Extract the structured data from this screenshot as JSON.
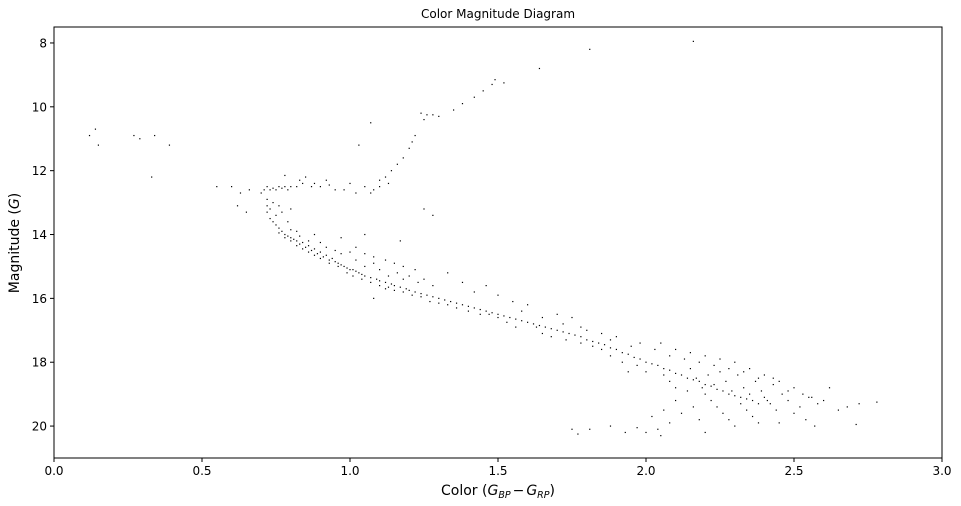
{
  "chart_data": {
    "type": "scatter",
    "title": "Color Magnitude Diagram",
    "xlabel_main": "Color (",
    "xlabel_g1": "G",
    "xlabel_g1_sub": "BP",
    "xlabel_minus": "−",
    "xlabel_g2": "G",
    "xlabel_g2_sub": "RP",
    "xlabel_close": ")",
    "ylabel_main": "Magnitude (",
    "ylabel_g": "G",
    "ylabel_close": ")",
    "xlim": [
      0.0,
      3.0
    ],
    "ylim": [
      21.0,
      7.5
    ],
    "y_inverted": true,
    "grid": false,
    "marker_color": "#000000",
    "x_ticks": [
      {
        "value": 0.0,
        "label": "0.0"
      },
      {
        "value": 0.5,
        "label": "0.5"
      },
      {
        "value": 1.0,
        "label": "1.0"
      },
      {
        "value": 1.5,
        "label": "1.5"
      },
      {
        "value": 2.0,
        "label": "2.0"
      },
      {
        "value": 2.5,
        "label": "2.5"
      },
      {
        "value": 3.0,
        "label": "3.0"
      }
    ],
    "y_ticks": [
      {
        "value": 8,
        "label": "8"
      },
      {
        "value": 10,
        "label": "10"
      },
      {
        "value": 12,
        "label": "12"
      },
      {
        "value": 14,
        "label": "14"
      },
      {
        "value": 16,
        "label": "16"
      },
      {
        "value": 18,
        "label": "18"
      },
      {
        "value": 20,
        "label": "20"
      }
    ],
    "points": [
      [
        0.12,
        10.9
      ],
      [
        0.14,
        10.7
      ],
      [
        0.15,
        11.2
      ],
      [
        0.27,
        10.9
      ],
      [
        0.29,
        11.0
      ],
      [
        0.34,
        10.9
      ],
      [
        0.39,
        11.2
      ],
      [
        0.33,
        12.2
      ],
      [
        0.55,
        12.5
      ],
      [
        0.6,
        12.5
      ],
      [
        0.63,
        12.7
      ],
      [
        0.66,
        12.6
      ],
      [
        0.62,
        13.1
      ],
      [
        0.65,
        13.3
      ],
      [
        0.7,
        12.7
      ],
      [
        0.71,
        12.6
      ],
      [
        0.72,
        12.5
      ],
      [
        0.73,
        12.6
      ],
      [
        0.74,
        12.55
      ],
      [
        0.75,
        12.6
      ],
      [
        0.76,
        12.5
      ],
      [
        0.77,
        12.55
      ],
      [
        0.78,
        12.5
      ],
      [
        0.79,
        12.6
      ],
      [
        0.8,
        12.5
      ],
      [
        0.82,
        12.5
      ],
      [
        0.84,
        12.4
      ],
      [
        0.87,
        12.5
      ],
      [
        0.9,
        12.5
      ],
      [
        0.93,
        12.45
      ],
      [
        0.95,
        12.6
      ],
      [
        0.72,
        12.9
      ],
      [
        0.72,
        13.1
      ],
      [
        0.72,
        13.3
      ],
      [
        0.73,
        13.5
      ],
      [
        0.73,
        13.2
      ],
      [
        0.74,
        13.6
      ],
      [
        0.74,
        13.0
      ],
      [
        0.75,
        13.7
      ],
      [
        0.75,
        13.4
      ],
      [
        0.76,
        13.8
      ],
      [
        0.76,
        13.1
      ],
      [
        0.77,
        13.9
      ],
      [
        0.77,
        13.3
      ],
      [
        0.78,
        14.0
      ],
      [
        0.79,
        13.6
      ],
      [
        0.79,
        14.05
      ],
      [
        0.8,
        14.1
      ],
      [
        0.8,
        13.2
      ],
      [
        0.81,
        14.15
      ],
      [
        0.82,
        14.2
      ],
      [
        0.82,
        13.9
      ],
      [
        0.83,
        14.3
      ],
      [
        0.84,
        14.25
      ],
      [
        0.85,
        14.4
      ],
      [
        0.86,
        14.35
      ],
      [
        0.87,
        14.5
      ],
      [
        0.88,
        14.45
      ],
      [
        0.89,
        14.6
      ],
      [
        0.9,
        14.55
      ],
      [
        0.91,
        14.7
      ],
      [
        0.92,
        14.65
      ],
      [
        0.93,
        14.8
      ],
      [
        0.94,
        14.75
      ],
      [
        0.95,
        14.85
      ],
      [
        0.96,
        14.9
      ],
      [
        0.97,
        14.95
      ],
      [
        0.98,
        15.0
      ],
      [
        0.99,
        15.05
      ],
      [
        1.0,
        15.1
      ],
      [
        1.01,
        15.1
      ],
      [
        1.02,
        15.15
      ],
      [
        1.03,
        15.2
      ],
      [
        1.04,
        15.25
      ],
      [
        1.05,
        15.3
      ],
      [
        1.07,
        15.35
      ],
      [
        1.09,
        15.4
      ],
      [
        1.1,
        15.45
      ],
      [
        1.12,
        15.5
      ],
      [
        1.14,
        15.55
      ],
      [
        1.15,
        15.6
      ],
      [
        1.17,
        15.65
      ],
      [
        1.19,
        15.7
      ],
      [
        1.2,
        15.75
      ],
      [
        1.22,
        15.8
      ],
      [
        1.24,
        15.85
      ],
      [
        1.26,
        15.9
      ],
      [
        1.28,
        15.95
      ],
      [
        1.3,
        16.0
      ],
      [
        1.32,
        16.05
      ],
      [
        1.34,
        16.1
      ],
      [
        1.36,
        16.15
      ],
      [
        1.38,
        16.2
      ],
      [
        1.4,
        16.25
      ],
      [
        1.42,
        16.3
      ],
      [
        1.44,
        16.35
      ],
      [
        1.46,
        16.4
      ],
      [
        1.48,
        16.45
      ],
      [
        1.5,
        16.5
      ],
      [
        1.52,
        16.55
      ],
      [
        1.54,
        16.6
      ],
      [
        1.56,
        16.65
      ],
      [
        1.58,
        16.7
      ],
      [
        1.6,
        16.75
      ],
      [
        1.62,
        16.8
      ],
      [
        1.64,
        16.85
      ],
      [
        1.66,
        16.9
      ],
      [
        1.68,
        16.95
      ],
      [
        1.7,
        17.0
      ],
      [
        1.72,
        17.05
      ],
      [
        1.74,
        17.1
      ],
      [
        1.76,
        17.15
      ],
      [
        1.78,
        17.2
      ],
      [
        1.8,
        17.3
      ],
      [
        1.82,
        17.35
      ],
      [
        1.84,
        17.4
      ],
      [
        1.86,
        17.45
      ],
      [
        1.88,
        17.55
      ],
      [
        1.9,
        17.6
      ],
      [
        1.92,
        17.7
      ],
      [
        1.94,
        17.75
      ],
      [
        1.96,
        17.85
      ],
      [
        1.98,
        17.9
      ],
      [
        2.0,
        18.0
      ],
      [
        2.02,
        18.05
      ],
      [
        2.04,
        18.1
      ],
      [
        2.06,
        18.2
      ],
      [
        2.08,
        18.25
      ],
      [
        2.1,
        18.35
      ],
      [
        2.12,
        18.4
      ],
      [
        2.14,
        18.5
      ],
      [
        2.16,
        18.55
      ],
      [
        2.18,
        18.6
      ],
      [
        2.2,
        18.7
      ],
      [
        2.22,
        18.75
      ],
      [
        2.24,
        18.85
      ],
      [
        2.26,
        18.9
      ],
      [
        2.28,
        19.0
      ],
      [
        2.3,
        19.05
      ],
      [
        2.32,
        19.1
      ],
      [
        2.34,
        19.15
      ],
      [
        2.36,
        19.2
      ],
      [
        2.38,
        19.3
      ],
      [
        0.8,
        13.85
      ],
      [
        0.83,
        14.05
      ],
      [
        0.86,
        14.2
      ],
      [
        0.88,
        14.0
      ],
      [
        0.9,
        14.25
      ],
      [
        0.92,
        14.4
      ],
      [
        0.95,
        14.5
      ],
      [
        0.97,
        14.6
      ],
      [
        1.0,
        14.55
      ],
      [
        1.02,
        14.8
      ],
      [
        1.05,
        15.0
      ],
      [
        1.08,
        14.9
      ],
      [
        1.1,
        15.1
      ],
      [
        1.13,
        15.3
      ],
      [
        1.16,
        15.2
      ],
      [
        1.18,
        15.4
      ],
      [
        1.2,
        15.3
      ],
      [
        1.23,
        15.5
      ],
      [
        1.25,
        15.4
      ],
      [
        1.28,
        15.6
      ],
      [
        0.97,
        14.1
      ],
      [
        1.02,
        14.4
      ],
      [
        1.05,
        14.6
      ],
      [
        1.08,
        14.7
      ],
      [
        1.12,
        14.8
      ],
      [
        1.15,
        14.9
      ],
      [
        1.18,
        15.0
      ],
      [
        1.22,
        15.1
      ],
      [
        0.78,
        12.15
      ],
      [
        0.83,
        12.3
      ],
      [
        0.85,
        12.2
      ],
      [
        0.88,
        12.4
      ],
      [
        0.92,
        12.3
      ],
      [
        0.98,
        12.6
      ],
      [
        1.0,
        12.4
      ],
      [
        1.02,
        12.7
      ],
      [
        1.05,
        12.5
      ],
      [
        1.07,
        12.7
      ],
      [
        1.08,
        12.6
      ],
      [
        1.1,
        12.5
      ],
      [
        1.1,
        12.3
      ],
      [
        1.12,
        12.2
      ],
      [
        1.13,
        12.4
      ],
      [
        1.14,
        12.0
      ],
      [
        1.16,
        11.8
      ],
      [
        1.18,
        11.6
      ],
      [
        1.2,
        11.3
      ],
      [
        1.21,
        11.1
      ],
      [
        1.22,
        10.9
      ],
      [
        1.25,
        10.4
      ],
      [
        1.24,
        10.2
      ],
      [
        1.26,
        10.25
      ],
      [
        1.28,
        10.25
      ],
      [
        1.3,
        10.3
      ],
      [
        1.35,
        10.1
      ],
      [
        1.38,
        9.9
      ],
      [
        1.42,
        9.7
      ],
      [
        1.45,
        9.5
      ],
      [
        1.48,
        9.3
      ],
      [
        1.49,
        9.15
      ],
      [
        1.52,
        9.25
      ],
      [
        1.64,
        8.8
      ],
      [
        1.81,
        8.2
      ],
      [
        2.16,
        7.95
      ],
      [
        1.07,
        10.5
      ],
      [
        1.03,
        11.2
      ],
      [
        1.25,
        13.2
      ],
      [
        1.28,
        13.4
      ],
      [
        1.05,
        14.0
      ],
      [
        1.17,
        14.2
      ],
      [
        1.12,
        15.7
      ],
      [
        1.08,
        16.0
      ],
      [
        1.33,
        15.2
      ],
      [
        1.38,
        15.5
      ],
      [
        1.42,
        15.8
      ],
      [
        1.46,
        15.6
      ],
      [
        1.5,
        15.9
      ],
      [
        1.55,
        16.1
      ],
      [
        1.58,
        16.4
      ],
      [
        1.6,
        16.2
      ],
      [
        1.65,
        16.6
      ],
      [
        1.7,
        16.5
      ],
      [
        1.72,
        16.8
      ],
      [
        1.75,
        16.6
      ],
      [
        1.78,
        16.9
      ],
      [
        1.8,
        17.0
      ],
      [
        1.85,
        17.1
      ],
      [
        1.88,
        17.3
      ],
      [
        1.9,
        17.2
      ],
      [
        1.95,
        17.5
      ],
      [
        1.98,
        17.4
      ],
      [
        2.03,
        17.6
      ],
      [
        2.05,
        17.4
      ],
      [
        2.08,
        17.8
      ],
      [
        2.1,
        17.6
      ],
      [
        2.13,
        17.9
      ],
      [
        2.15,
        17.7
      ],
      [
        2.18,
        18.0
      ],
      [
        2.2,
        17.8
      ],
      [
        2.23,
        18.1
      ],
      [
        2.25,
        17.9
      ],
      [
        2.28,
        18.2
      ],
      [
        2.3,
        18.0
      ],
      [
        2.33,
        18.3
      ],
      [
        2.35,
        18.2
      ],
      [
        2.38,
        18.5
      ],
      [
        2.4,
        18.4
      ],
      [
        2.43,
        18.7
      ],
      [
        2.45,
        18.6
      ],
      [
        2.48,
        18.9
      ],
      [
        2.5,
        18.8
      ],
      [
        2.53,
        19.0
      ],
      [
        2.55,
        19.1
      ],
      [
        2.58,
        19.3
      ],
      [
        2.6,
        19.2
      ],
      [
        2.62,
        18.8
      ],
      [
        2.65,
        19.5
      ],
      [
        2.68,
        19.4
      ],
      [
        2.71,
        19.95
      ],
      [
        2.72,
        19.3
      ],
      [
        2.78,
        19.25
      ],
      [
        2.57,
        20.0
      ],
      [
        2.2,
        19.0
      ],
      [
        2.22,
        19.2
      ],
      [
        2.24,
        19.4
      ],
      [
        2.26,
        19.6
      ],
      [
        2.28,
        19.8
      ],
      [
        2.3,
        20.0
      ],
      [
        2.32,
        19.3
      ],
      [
        2.34,
        19.5
      ],
      [
        2.36,
        19.7
      ],
      [
        2.38,
        19.9
      ],
      [
        2.4,
        19.1
      ],
      [
        2.42,
        19.3
      ],
      [
        2.44,
        19.5
      ],
      [
        2.46,
        19.0
      ],
      [
        2.48,
        19.2
      ],
      [
        2.5,
        19.6
      ],
      [
        2.52,
        19.4
      ],
      [
        2.54,
        19.8
      ],
      [
        2.56,
        19.1
      ],
      [
        2.45,
        19.9
      ],
      [
        2.1,
        19.2
      ],
      [
        2.12,
        19.6
      ],
      [
        2.14,
        18.9
      ],
      [
        2.16,
        19.4
      ],
      [
        2.18,
        19.8
      ],
      [
        2.2,
        20.2
      ],
      [
        2.06,
        19.5
      ],
      [
        2.08,
        19.9
      ],
      [
        2.04,
        20.1
      ],
      [
        2.02,
        19.7
      ],
      [
        1.75,
        20.1
      ],
      [
        1.77,
        20.25
      ],
      [
        1.81,
        20.1
      ],
      [
        1.88,
        20.0
      ],
      [
        1.93,
        20.2
      ],
      [
        1.97,
        20.05
      ],
      [
        2.0,
        20.2
      ],
      [
        2.05,
        20.3
      ],
      [
        2.25,
        18.3
      ],
      [
        2.27,
        18.6
      ],
      [
        2.29,
        18.9
      ],
      [
        2.31,
        18.4
      ],
      [
        2.33,
        18.8
      ],
      [
        2.35,
        19.0
      ],
      [
        2.37,
        18.6
      ],
      [
        2.39,
        18.9
      ],
      [
        2.41,
        19.2
      ],
      [
        2.43,
        18.5
      ],
      [
        2.15,
        18.2
      ],
      [
        2.17,
        18.5
      ],
      [
        2.19,
        18.8
      ],
      [
        2.21,
        18.4
      ],
      [
        2.23,
        18.7
      ],
      [
        2.06,
        18.4
      ],
      [
        2.08,
        18.6
      ],
      [
        2.1,
        18.8
      ],
      [
        2.0,
        18.3
      ],
      [
        1.97,
        18.1
      ],
      [
        1.92,
        18.0
      ],
      [
        1.94,
        18.3
      ],
      [
        1.88,
        17.8
      ],
      [
        1.85,
        17.6
      ],
      [
        1.82,
        17.5
      ],
      [
        1.78,
        17.4
      ],
      [
        1.73,
        17.3
      ],
      [
        1.68,
        17.2
      ],
      [
        1.65,
        17.1
      ],
      [
        1.63,
        16.9
      ],
      [
        1.56,
        16.9
      ],
      [
        1.53,
        16.75
      ],
      [
        1.5,
        16.6
      ],
      [
        1.47,
        16.5
      ],
      [
        1.44,
        16.5
      ],
      [
        1.4,
        16.4
      ],
      [
        1.36,
        16.3
      ],
      [
        1.33,
        16.2
      ],
      [
        1.3,
        16.15
      ],
      [
        1.27,
        16.1
      ],
      [
        1.24,
        15.95
      ],
      [
        1.21,
        15.9
      ],
      [
        1.18,
        15.8
      ],
      [
        1.15,
        15.75
      ],
      [
        1.13,
        15.65
      ],
      [
        1.1,
        15.6
      ],
      [
        1.07,
        15.5
      ],
      [
        1.04,
        15.4
      ],
      [
        1.01,
        15.3
      ],
      [
        0.99,
        15.2
      ],
      [
        0.96,
        15.0
      ],
      [
        0.93,
        14.9
      ],
      [
        0.9,
        14.75
      ],
      [
        0.88,
        14.65
      ],
      [
        0.86,
        14.55
      ],
      [
        0.84,
        14.45
      ],
      [
        0.82,
        14.35
      ],
      [
        0.8,
        14.2
      ],
      [
        0.78,
        14.1
      ],
      [
        0.76,
        13.95
      ]
    ]
  }
}
